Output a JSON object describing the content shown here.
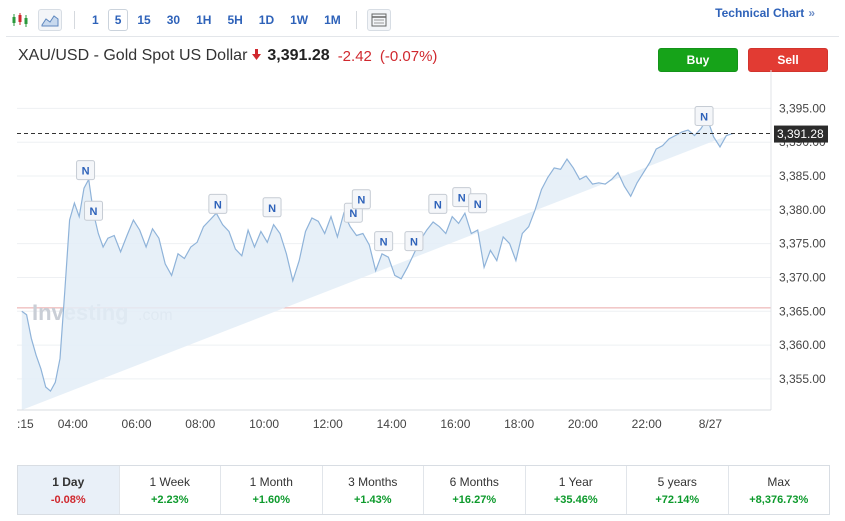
{
  "toolbar": {
    "timeframes": [
      "1",
      "5",
      "15",
      "30",
      "1H",
      "5H",
      "1D",
      "1W",
      "1M"
    ],
    "active_timeframe": "5",
    "technical_chart_label": "Technical Chart",
    "chevron": "»"
  },
  "header": {
    "instrument": "XAU/USD - Gold Spot US Dollar",
    "price": "3,391.28",
    "change": "-2.42",
    "change_pct": "(-0.07%)",
    "buy_label": "Buy",
    "sell_label": "Sell"
  },
  "watermark": {
    "brand": "Investing",
    "suffix": ".com"
  },
  "colors": {
    "accent": "#2e62b9",
    "positive": "#0d9a2c",
    "negative": "#d0282e",
    "area_fill": "#e3edf7",
    "line": "#8fb3d9",
    "buy": "#16a319",
    "sell": "#e23b33"
  },
  "chart_data": {
    "type": "area",
    "y_ticks": [
      "3,355.00",
      "3,360.00",
      "3,365.00",
      "3,370.00",
      "3,375.00",
      "3,380.00",
      "3,385.00",
      "3,390.00",
      "3,395.00"
    ],
    "y_tick_values": [
      3355,
      3360,
      3365,
      3370,
      3375,
      3380,
      3385,
      3390,
      3395
    ],
    "x_ticks": [
      ":15",
      "04:00",
      "06:00",
      "08:00",
      "10:00",
      "12:00",
      "14:00",
      "16:00",
      "18:00",
      "20:00",
      "22:00",
      "8/27"
    ],
    "ylim": [
      3350,
      3398
    ],
    "last_price_label": "3,391.28",
    "last_price": 3391.28,
    "reference_price": 3365.5,
    "grid": "horizontal",
    "news_marker_label": "N",
    "news_markers": [
      {
        "hour": 4.4,
        "price": 3385.8
      },
      {
        "hour": 4.65,
        "price": 3379.8
      },
      {
        "hour": 8.55,
        "price": 3380.8
      },
      {
        "hour": 10.25,
        "price": 3380.3
      },
      {
        "hour": 12.8,
        "price": 3379.5
      },
      {
        "hour": 13.05,
        "price": 3381.5
      },
      {
        "hour": 13.75,
        "price": 3375.3
      },
      {
        "hour": 14.7,
        "price": 3375.3
      },
      {
        "hour": 15.45,
        "price": 3380.8
      },
      {
        "hour": 16.2,
        "price": 3381.8
      },
      {
        "hour": 16.7,
        "price": 3380.9
      },
      {
        "hour": 23.8,
        "price": 3393.8
      }
    ],
    "series": [
      {
        "hours": [
          2.4,
          2.55,
          2.7,
          2.85,
          3.0,
          3.15,
          3.3,
          3.45,
          3.6,
          3.75,
          3.9,
          4.05,
          4.2,
          4.35,
          4.5,
          4.65,
          4.8,
          4.95,
          5.1,
          5.3,
          5.5,
          5.7,
          5.9,
          6.1,
          6.3,
          6.5,
          6.7,
          6.9,
          7.1,
          7.3,
          7.5,
          7.7,
          7.9,
          8.1,
          8.3,
          8.5,
          8.7,
          8.9,
          9.1,
          9.3,
          9.5,
          9.7,
          9.9,
          10.1,
          10.3,
          10.5,
          10.7,
          10.9,
          11.1,
          11.3,
          11.5,
          11.7,
          11.9,
          12.1,
          12.3,
          12.5,
          12.7,
          12.9,
          13.1,
          13.3,
          13.5,
          13.7,
          13.9,
          14.1,
          14.3,
          14.5,
          14.7,
          14.9,
          15.1,
          15.3,
          15.5,
          15.7,
          15.9,
          16.1,
          16.3,
          16.5,
          16.7,
          16.9,
          17.1,
          17.3,
          17.5,
          17.7,
          17.9,
          18.1,
          18.3,
          18.5,
          18.7,
          18.9,
          19.1,
          19.3,
          19.5,
          19.7,
          19.9,
          20.1,
          20.3,
          20.5,
          20.7,
          20.9,
          21.1,
          21.3,
          21.5,
          21.7,
          21.9,
          22.1,
          22.3,
          22.5,
          22.7,
          22.9,
          23.1,
          23.3,
          23.5,
          23.7,
          23.9,
          24.1,
          24.3,
          24.5,
          24.7,
          24.9,
          25.1
        ],
        "prices": [
          3365.0,
          3364.5,
          3361.0,
          3358.5,
          3356.5,
          3353.8,
          3353.2,
          3354.5,
          3358.0,
          3368.0,
          3378.5,
          3381.0,
          3379.0,
          3383.2,
          3384.5,
          3379.5,
          3376.5,
          3374.5,
          3375.8,
          3376.2,
          3373.8,
          3376.2,
          3378.5,
          3377.0,
          3374.5,
          3377.2,
          3375.8,
          3372.0,
          3370.3,
          3373.5,
          3372.8,
          3374.5,
          3375.2,
          3377.5,
          3378.5,
          3379.5,
          3377.8,
          3376.8,
          3374.2,
          3373.2,
          3377.0,
          3374.5,
          3376.8,
          3375.2,
          3377.8,
          3376.5,
          3373.5,
          3369.5,
          3372.5,
          3376.8,
          3378.8,
          3378.3,
          3376.5,
          3379.0,
          3376.0,
          3379.5,
          3377.5,
          3376.2,
          3376.5,
          3374.8,
          3371.0,
          3373.5,
          3373.0,
          3370.3,
          3369.8,
          3371.5,
          3373.5,
          3375.5,
          3377.0,
          3378.2,
          3377.5,
          3376.5,
          3379.0,
          3378.0,
          3379.5,
          3376.5,
          3377.0,
          3371.5,
          3374.0,
          3372.5,
          3376.0,
          3375.0,
          3372.5,
          3376.5,
          3377.5,
          3380.0,
          3383.0,
          3384.8,
          3386.2,
          3386.0,
          3387.5,
          3386.2,
          3384.5,
          3385.0,
          3383.8,
          3384.0,
          3383.8,
          3384.5,
          3385.5,
          3383.5,
          3382.0,
          3384.0,
          3385.5,
          3387.0,
          3389.0,
          3389.5,
          3390.5,
          3391.0,
          3391.5,
          3391.8,
          3391.0,
          3392.0,
          3393.5,
          3390.8,
          3389.3,
          3391.0,
          3391.28
        ]
      }
    ]
  },
  "performance": [
    {
      "period": "1 Day",
      "value": "-0.08%",
      "dir": "neg",
      "active": true
    },
    {
      "period": "1 Week",
      "value": "+2.23%",
      "dir": "pos",
      "active": false
    },
    {
      "period": "1 Month",
      "value": "+1.60%",
      "dir": "pos",
      "active": false
    },
    {
      "period": "3 Months",
      "value": "+1.43%",
      "dir": "pos",
      "active": false
    },
    {
      "period": "6 Months",
      "value": "+16.27%",
      "dir": "pos",
      "active": false
    },
    {
      "period": "1 Year",
      "value": "+35.46%",
      "dir": "pos",
      "active": false
    },
    {
      "period": "5 years",
      "value": "+72.14%",
      "dir": "pos",
      "active": false
    },
    {
      "period": "Max",
      "value": "+8,376.73%",
      "dir": "pos",
      "active": false
    }
  ]
}
